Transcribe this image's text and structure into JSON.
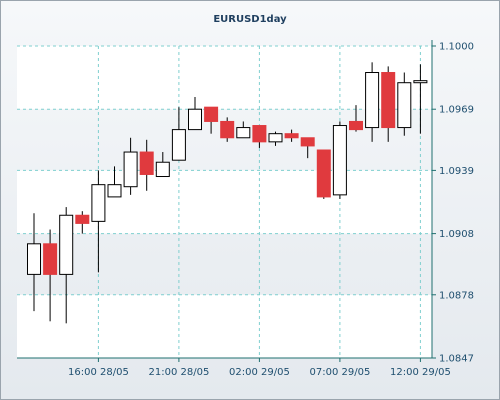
{
  "chart_data": {
    "type": "candlestick",
    "title": "EURUSD1day",
    "x_tick_labels": [
      "16:00 28/05",
      "21:00 28/05",
      "02:00 29/05",
      "07:00 29/05",
      "12:00 29/05"
    ],
    "x_tick_candle_index": [
      4,
      9,
      14,
      19,
      24
    ],
    "y_ticks": [
      "1.1000",
      "1.0969",
      "1.0939",
      "1.0908",
      "1.0878",
      "1.0847"
    ],
    "ylim": [
      1.0847,
      1.1
    ],
    "grid": true,
    "colors": {
      "up_fill": "#ffffff",
      "down_fill": "#e03a3e",
      "candle_stroke": "#000000",
      "grid": "#7fcfcf",
      "axis": "#1f6f6f",
      "band": "#ffffff"
    },
    "candles": [
      {
        "open": 1.0888,
        "high": 1.0918,
        "low": 1.087,
        "close": 1.0903
      },
      {
        "open": 1.0903,
        "high": 1.091,
        "low": 1.0865,
        "close": 1.0888
      },
      {
        "open": 1.0888,
        "high": 1.0921,
        "low": 1.0864,
        "close": 1.0917
      },
      {
        "open": 1.0917,
        "high": 1.0919,
        "low": 1.0908,
        "close": 1.0913
      },
      {
        "open": 1.0914,
        "high": 1.0939,
        "low": 1.0889,
        "close": 1.0932
      },
      {
        "open": 1.0926,
        "high": 1.0941,
        "low": 1.0926,
        "close": 1.0932
      },
      {
        "open": 1.0931,
        "high": 1.0955,
        "low": 1.0927,
        "close": 1.0948
      },
      {
        "open": 1.0948,
        "high": 1.0954,
        "low": 1.0929,
        "close": 1.0937
      },
      {
        "open": 1.0936,
        "high": 1.0948,
        "low": 1.0936,
        "close": 1.0943
      },
      {
        "open": 1.0944,
        "high": 1.097,
        "low": 1.0944,
        "close": 1.0959
      },
      {
        "open": 1.0959,
        "high": 1.0975,
        "low": 1.0959,
        "close": 1.0969
      },
      {
        "open": 1.097,
        "high": 1.097,
        "low": 1.0957,
        "close": 1.0963
      },
      {
        "open": 1.0963,
        "high": 1.0965,
        "low": 1.0953,
        "close": 1.0955
      },
      {
        "open": 1.0955,
        "high": 1.0963,
        "low": 1.0955,
        "close": 1.096
      },
      {
        "open": 1.0961,
        "high": 1.0961,
        "low": 1.095,
        "close": 1.0953
      },
      {
        "open": 1.0953,
        "high": 1.0958,
        "low": 1.0951,
        "close": 1.0957
      },
      {
        "open": 1.0957,
        "high": 1.0959,
        "low": 1.0953,
        "close": 1.0955
      },
      {
        "open": 1.0955,
        "high": 1.0955,
        "low": 1.0945,
        "close": 1.0951
      },
      {
        "open": 1.0949,
        "high": 1.0949,
        "low": 1.0925,
        "close": 1.0926
      },
      {
        "open": 1.0927,
        "high": 1.0963,
        "low": 1.0925,
        "close": 1.0961
      },
      {
        "open": 1.0963,
        "high": 1.0971,
        "low": 1.0958,
        "close": 1.0959
      },
      {
        "open": 1.096,
        "high": 1.0992,
        "low": 1.0953,
        "close": 1.0987
      },
      {
        "open": 1.0987,
        "high": 1.099,
        "low": 1.0953,
        "close": 1.096
      },
      {
        "open": 1.096,
        "high": 1.0987,
        "low": 1.0956,
        "close": 1.0982
      },
      {
        "open": 1.0982,
        "high": 1.0991,
        "low": 1.0957,
        "close": 1.0983
      }
    ]
  }
}
